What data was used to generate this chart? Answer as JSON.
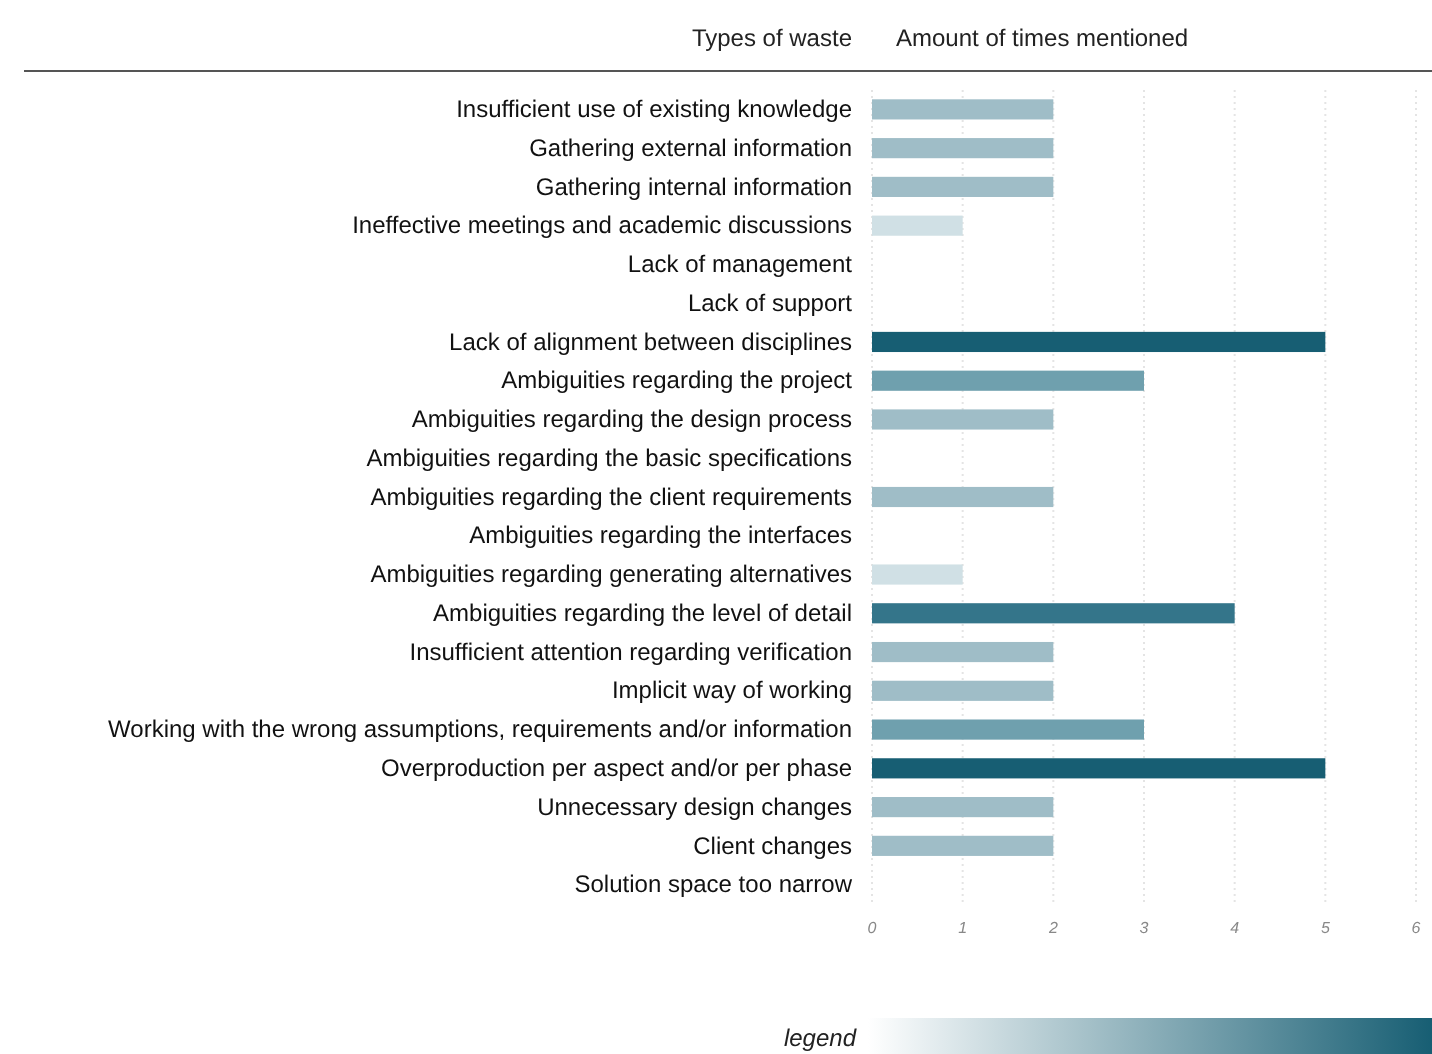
{
  "chart_data": {
    "type": "bar",
    "orientation": "horizontal",
    "ylabel": "Types of waste",
    "xlabel": "Amount of times mentioned",
    "legend_title": "legend",
    "categories": [
      "Insufficient use of existing knowledge",
      "Gathering external information",
      "Gathering internal information",
      "Ineffective meetings and academic discussions",
      "Lack of management",
      "Lack of support",
      "Lack of alignment between disciplines",
      "Ambiguities regarding the project",
      "Ambiguities regarding the design process",
      "Ambiguities regarding the basic specifications",
      "Ambiguities regarding the client requirements",
      "Ambiguities regarding the interfaces",
      "Ambiguities regarding generating alternatives",
      "Ambiguities regarding the level of detail",
      "Insufficient attention regarding verification",
      "Implicit way of working",
      "Working with the wrong assumptions, requirements and/or information",
      "Overproduction per aspect and/or per phase",
      "Unnecessary design changes",
      "Client changes",
      "Solution space too narrow"
    ],
    "values": [
      2,
      2,
      2,
      1,
      0,
      0,
      5,
      3,
      2,
      0,
      2,
      0,
      1,
      4,
      2,
      2,
      3,
      5,
      2,
      2,
      0
    ],
    "colors": [
      "#9fbdc7",
      "#9fbdc7",
      "#9fbdc7",
      "#d0e0e5",
      null,
      null,
      "#175e73",
      "#6fa0ae",
      "#9fbdc7",
      null,
      "#9fbdc7",
      null,
      "#d0e0e5",
      "#34758a",
      "#9fbdc7",
      "#9fbdc7",
      "#6fa0ae",
      "#175e73",
      "#9fbdc7",
      "#9fbdc7",
      null
    ],
    "xlim": [
      0,
      6
    ],
    "xticks": [
      0,
      1,
      2,
      3,
      4,
      5,
      6
    ],
    "grid": "x"
  }
}
